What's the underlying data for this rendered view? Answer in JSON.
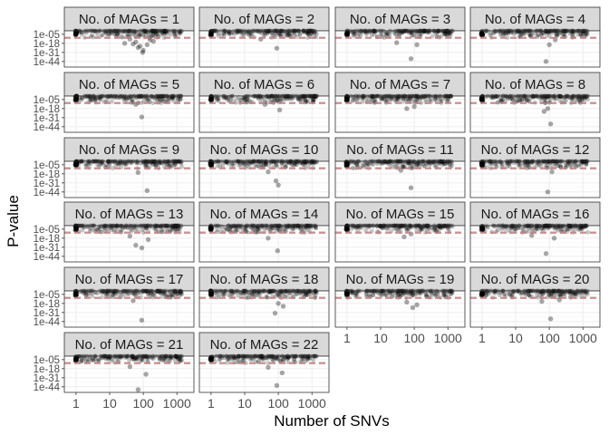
{
  "chart_data": {
    "type": "scatter",
    "facet_label_prefix": "No. of MAGs = ",
    "facets": [
      1,
      2,
      3,
      4,
      5,
      6,
      7,
      8,
      9,
      10,
      11,
      12,
      13,
      14,
      15,
      16,
      17,
      18,
      19,
      20,
      21,
      22
    ],
    "xlabel": "Number of SNVs",
    "ylabel": "P-value",
    "x_scale": "log10",
    "x_ticks": [
      1,
      10,
      100,
      1000
    ],
    "x_tick_labels": [
      "1",
      "10",
      "100",
      "1000"
    ],
    "y_scale": "-log10",
    "y_ticks": [
      1e-05,
      1e-18,
      1e-31,
      1e-44
    ],
    "y_tick_labels": [
      "1e-05",
      "1e-18",
      "1e-31",
      "1e-44"
    ],
    "xlim": [
      0.45,
      3200
    ],
    "ylim_neglog10": [
      0,
      52
    ],
    "threshold_line": {
      "p_value": 1e-10,
      "color": "#c08080",
      "style": "dashed"
    },
    "point_color": "#000000",
    "point_opacity": 0.22,
    "grid": true,
    "theme_colors": {
      "strip_fill": "#d9d9d9",
      "panel_border": "#333333",
      "grid_major": "#ebebeb",
      "grid_minor": "#f5f5f5"
    },
    "outliers": [
      {
        "facet": 1,
        "points": [
          [
            40,
            12
          ],
          [
            60,
            16
          ],
          [
            50,
            19
          ],
          [
            80,
            22
          ],
          [
            100,
            28
          ],
          [
            130,
            20
          ],
          [
            200,
            15
          ],
          [
            28,
            18
          ],
          [
            70,
            24
          ],
          [
            95,
            31
          ],
          [
            160,
            13
          ]
        ]
      },
      {
        "facet": 2,
        "points": [
          [
            90,
            25
          ],
          [
            30,
            12
          ]
        ]
      },
      {
        "facet": 3,
        "points": [
          [
            80,
            40
          ],
          [
            30,
            17
          ],
          [
            120,
            20
          ]
        ]
      },
      {
        "facet": 4,
        "points": [
          [
            80,
            44
          ],
          [
            100,
            20
          ],
          [
            150,
            13
          ]
        ]
      },
      {
        "facet": 5,
        "points": [
          [
            90,
            30
          ],
          [
            60,
            12
          ]
        ]
      },
      {
        "facet": 6,
        "points": [
          [
            110,
            20
          ],
          [
            40,
            12
          ]
        ]
      },
      {
        "facet": 7,
        "points": [
          [
            60,
            18
          ],
          [
            100,
            15
          ]
        ]
      },
      {
        "facet": 8,
        "points": [
          [
            110,
            40
          ],
          [
            70,
            22
          ],
          [
            90,
            18
          ]
        ]
      },
      {
        "facet": 9,
        "points": [
          [
            130,
            42
          ],
          [
            70,
            16
          ]
        ]
      },
      {
        "facet": 10,
        "points": [
          [
            100,
            34
          ],
          [
            85,
            28
          ],
          [
            50,
            15
          ]
        ]
      },
      {
        "facet": 11,
        "points": [
          [
            80,
            38
          ],
          [
            40,
            13
          ]
        ]
      },
      {
        "facet": 12,
        "points": [
          [
            90,
            44
          ],
          [
            120,
            15
          ]
        ]
      },
      {
        "facet": 13,
        "points": [
          [
            60,
            28
          ],
          [
            90,
            32
          ],
          [
            140,
            20
          ],
          [
            40,
            15
          ]
        ]
      },
      {
        "facet": 14,
        "points": [
          [
            95,
            36
          ],
          [
            50,
            18
          ]
        ]
      },
      {
        "facet": 15,
        "points": [
          [
            50,
            16
          ],
          [
            80,
            12
          ]
        ]
      },
      {
        "facet": 16,
        "points": [
          [
            80,
            40
          ],
          [
            30,
            14
          ],
          [
            140,
            18
          ]
        ]
      },
      {
        "facet": 17,
        "points": [
          [
            90,
            42
          ],
          [
            50,
            14
          ]
        ]
      },
      {
        "facet": 18,
        "points": [
          [
            80,
            32
          ],
          [
            140,
            22
          ],
          [
            100,
            18
          ]
        ]
      },
      {
        "facet": 19,
        "points": [
          [
            90,
            24
          ],
          [
            120,
            20
          ],
          [
            60,
            16
          ]
        ]
      },
      {
        "facet": 20,
        "points": [
          [
            110,
            40
          ],
          [
            60,
            15
          ],
          [
            200,
            13
          ]
        ]
      },
      {
        "facet": 21,
        "points": [
          [
            70,
            48
          ],
          [
            120,
            26
          ],
          [
            40,
            15
          ]
        ]
      },
      {
        "facet": 22,
        "points": [
          [
            90,
            42
          ],
          [
            130,
            24
          ],
          [
            50,
            16
          ]
        ]
      }
    ]
  }
}
